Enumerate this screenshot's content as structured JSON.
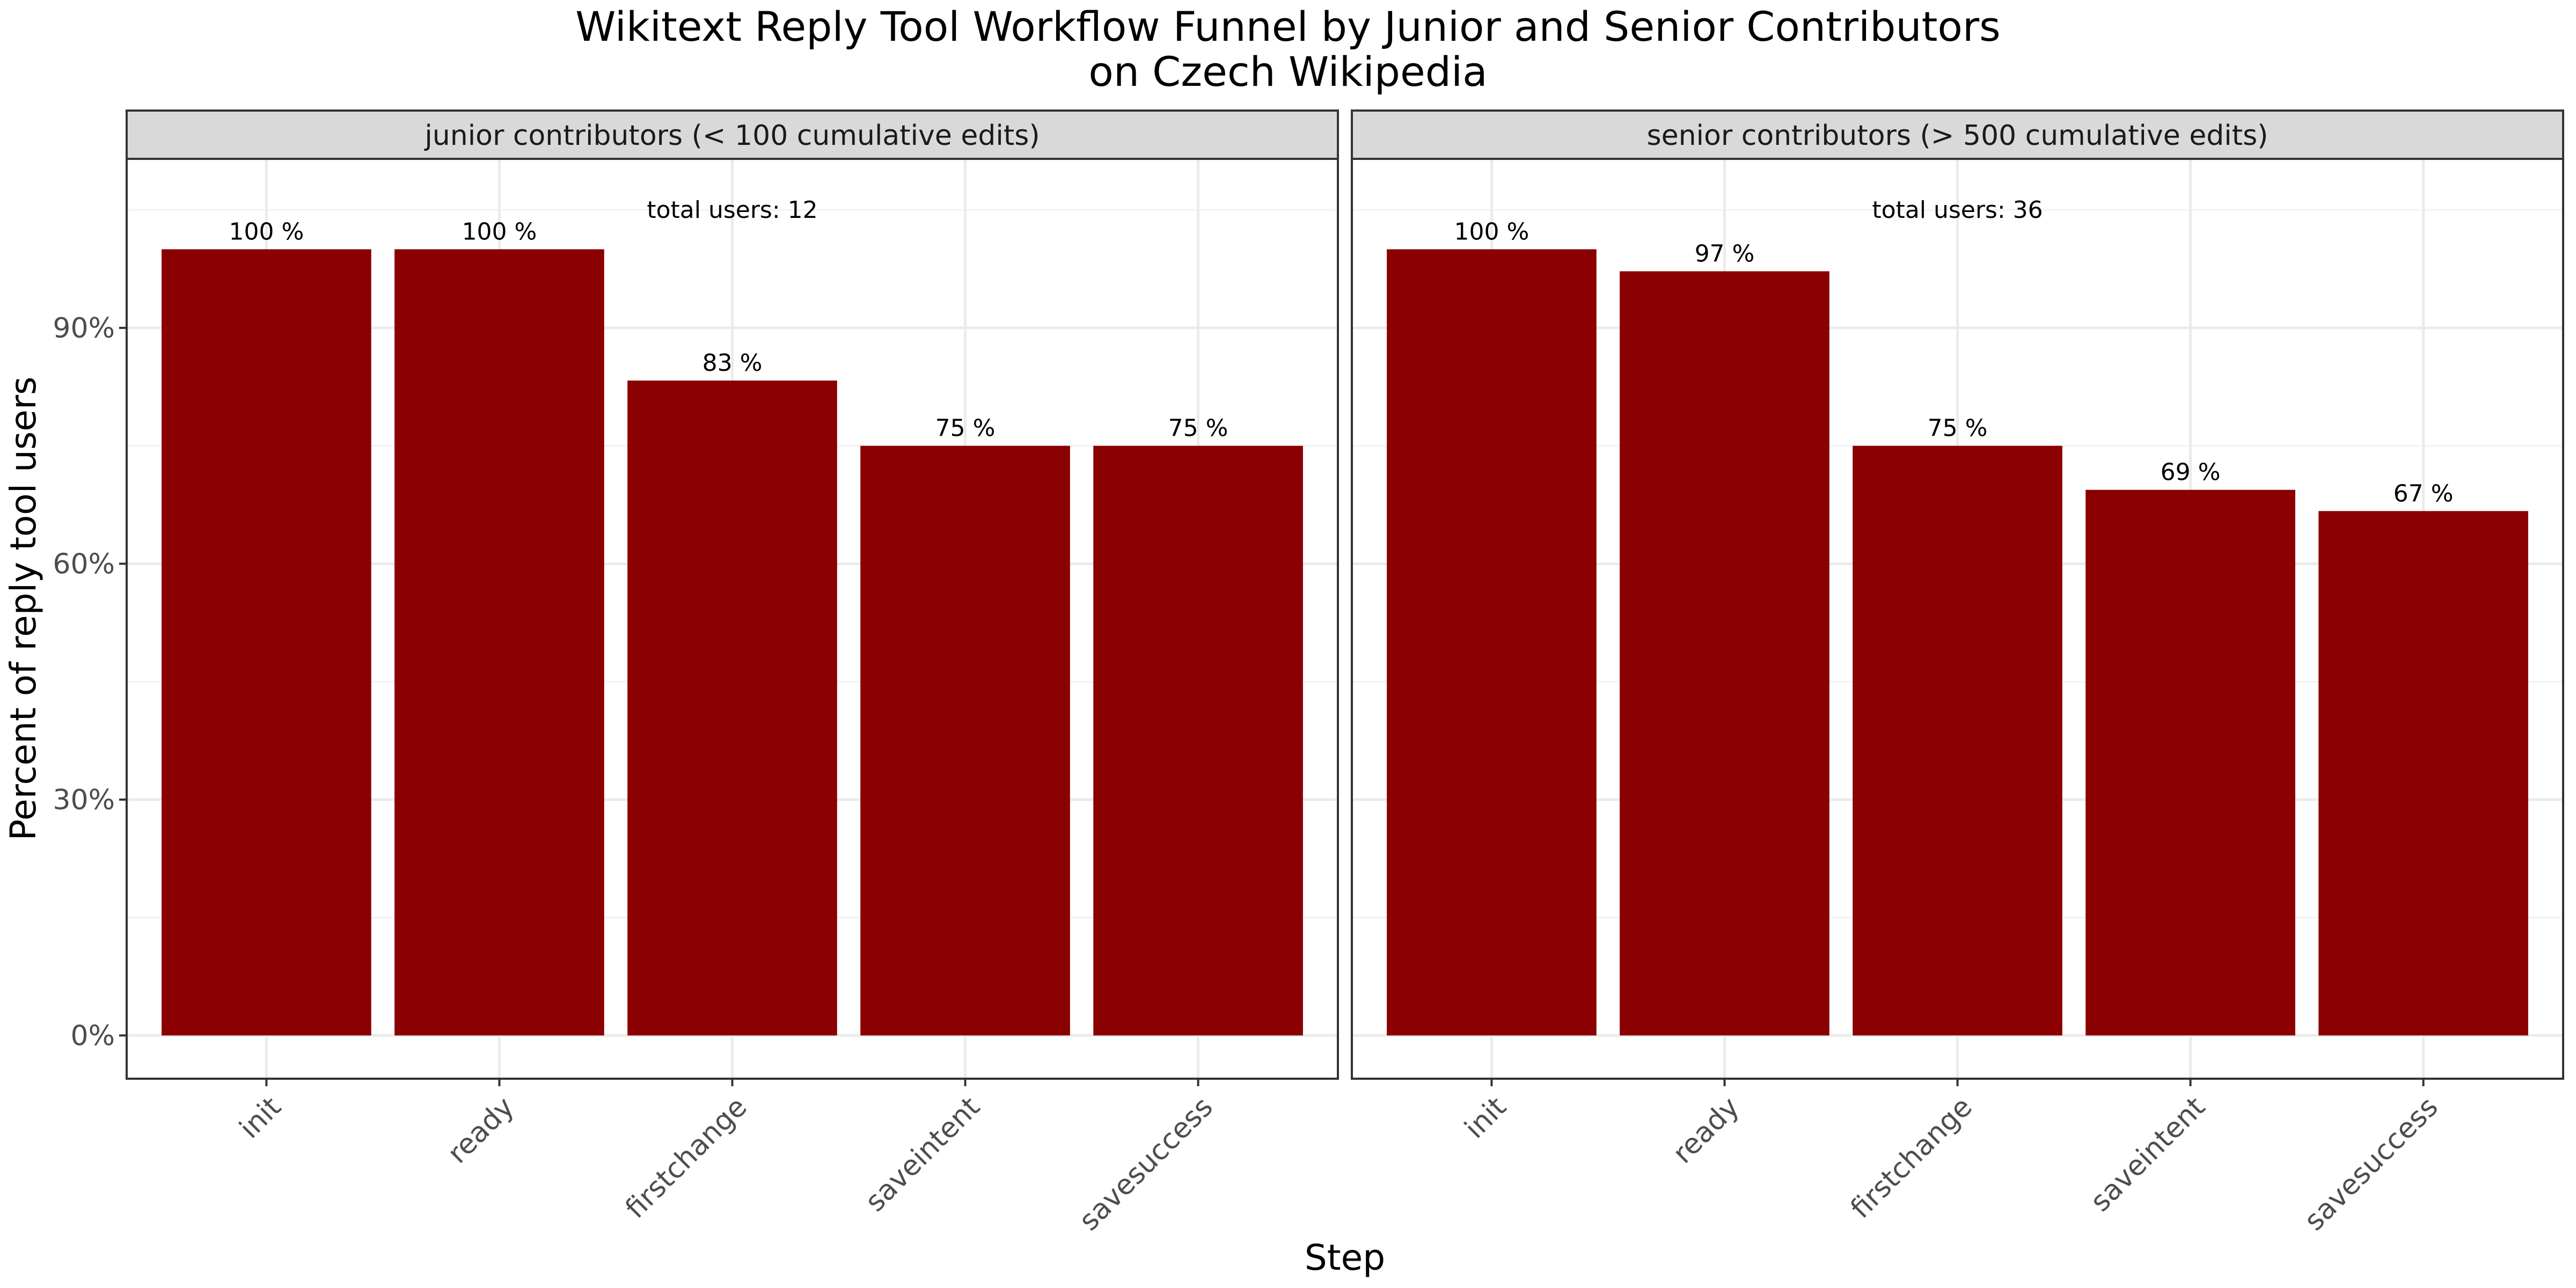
{
  "chart_data": {
    "type": "bar",
    "title_lines": [
      "Wikitext Reply Tool Workflow Funnel by Junior and Senior Contributors",
      "on Czech Wikipedia"
    ],
    "xlabel": "Step",
    "ylabel": "Percent of reply tool users",
    "categories": [
      "init",
      "ready",
      "firstchange",
      "saveintent",
      "savesuccess"
    ],
    "y_ticks": [
      0,
      30,
      60,
      90
    ],
    "y_tick_labels": [
      "0%",
      "30%",
      "60%",
      "90%"
    ],
    "ylim": [
      -5.5,
      111.5
    ],
    "grid": true,
    "bar_color": "#8B0000",
    "panels": [
      {
        "strip": "junior contributors (< 100 cumulative edits)",
        "annotation": "total users: 12",
        "values": [
          100,
          100,
          83.3,
          75,
          75
        ],
        "labels": [
          "100 %",
          "100 %",
          "83 %",
          "75 %",
          "75 %"
        ]
      },
      {
        "strip": "senior contributors (> 500 cumulative edits)",
        "annotation": "total users: 36",
        "values": [
          100,
          97.2,
          75,
          69.4,
          66.7
        ],
        "labels": [
          "100 %",
          "97 %",
          "75 %",
          "69 %",
          "67 %"
        ]
      }
    ]
  }
}
